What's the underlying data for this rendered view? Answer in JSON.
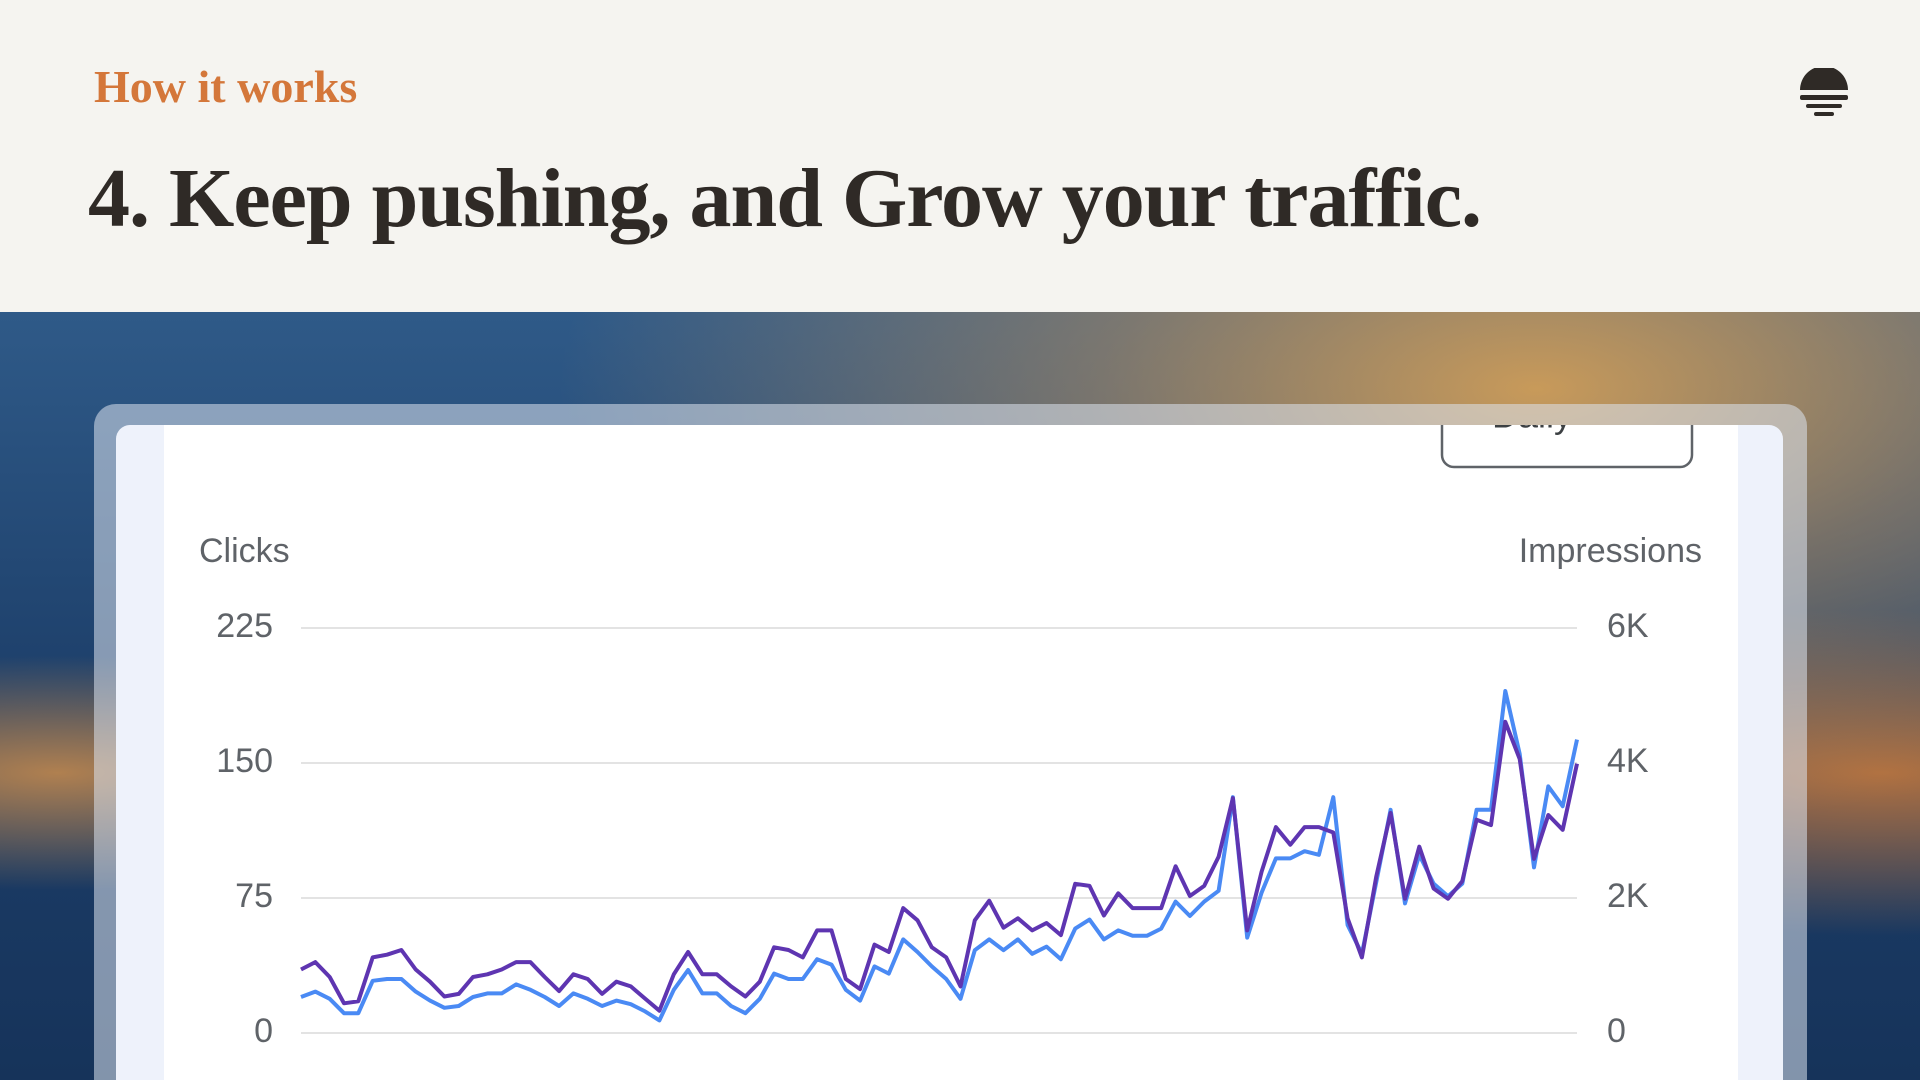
{
  "header": {
    "eyebrow": "How it works",
    "title": "4. Keep pushing, and Grow your traffic."
  },
  "chart_data": {
    "type": "line",
    "button": "Daily",
    "ylabel": "Clicks",
    "y2label": "Impressions",
    "ylim": [
      0,
      225
    ],
    "yticks": [
      0,
      75,
      150,
      225
    ],
    "y2lim": [
      0,
      6000
    ],
    "y2ticks": [
      0,
      {
        "value": 2000,
        "label": "2K"
      },
      {
        "value": 4000,
        "label": "4K"
      },
      {
        "value": 6000,
        "label": "6K"
      }
    ],
    "grid": true,
    "series": [
      {
        "color": "#4a8af4",
        "axis": "y",
        "values": [
          20,
          23,
          19,
          11,
          11,
          29,
          30,
          30,
          23,
          18,
          14,
          15,
          20,
          22,
          22,
          27,
          24,
          20,
          15,
          22,
          19,
          15,
          18,
          16,
          12,
          7,
          24,
          35,
          22,
          22,
          15,
          11,
          19,
          33,
          30,
          30,
          41,
          38,
          24,
          18,
          37,
          33,
          52,
          45,
          37,
          30,
          19,
          46,
          52,
          46,
          52,
          44,
          48,
          41,
          58,
          63,
          52,
          57,
          54,
          54,
          58,
          73,
          65,
          73,
          79,
          131,
          53,
          78,
          97,
          97,
          101,
          99,
          131,
          60,
          44,
          84,
          124,
          72,
          99,
          83,
          76,
          83,
          124,
          124,
          190,
          155,
          92,
          137,
          126,
          163
        ]
      },
      {
        "color": "#5e35b1",
        "axis": "y2",
        "values": [
          940,
          1050,
          830,
          440,
          470,
          1120,
          1160,
          1230,
          940,
          760,
          540,
          580,
          830,
          870,
          940,
          1050,
          1050,
          830,
          620,
          870,
          800,
          580,
          760,
          690,
          510,
          330,
          870,
          1200,
          870,
          870,
          690,
          540,
          760,
          1270,
          1230,
          1120,
          1520,
          1520,
          800,
          650,
          1310,
          1200,
          1850,
          1670,
          1270,
          1120,
          690,
          1670,
          1960,
          1560,
          1700,
          1520,
          1630,
          1450,
          2210,
          2180,
          1740,
          2070,
          1850,
          1850,
          1850,
          2470,
          2030,
          2180,
          2610,
          3480,
          1520,
          2390,
          3050,
          2790,
          3050,
          3050,
          2970,
          1700,
          1120,
          2320,
          3260,
          1990,
          2760,
          2140,
          1990,
          2250,
          3160,
          3080,
          4610,
          4060,
          2580,
          3230,
          3010,
          3990
        ]
      }
    ]
  }
}
